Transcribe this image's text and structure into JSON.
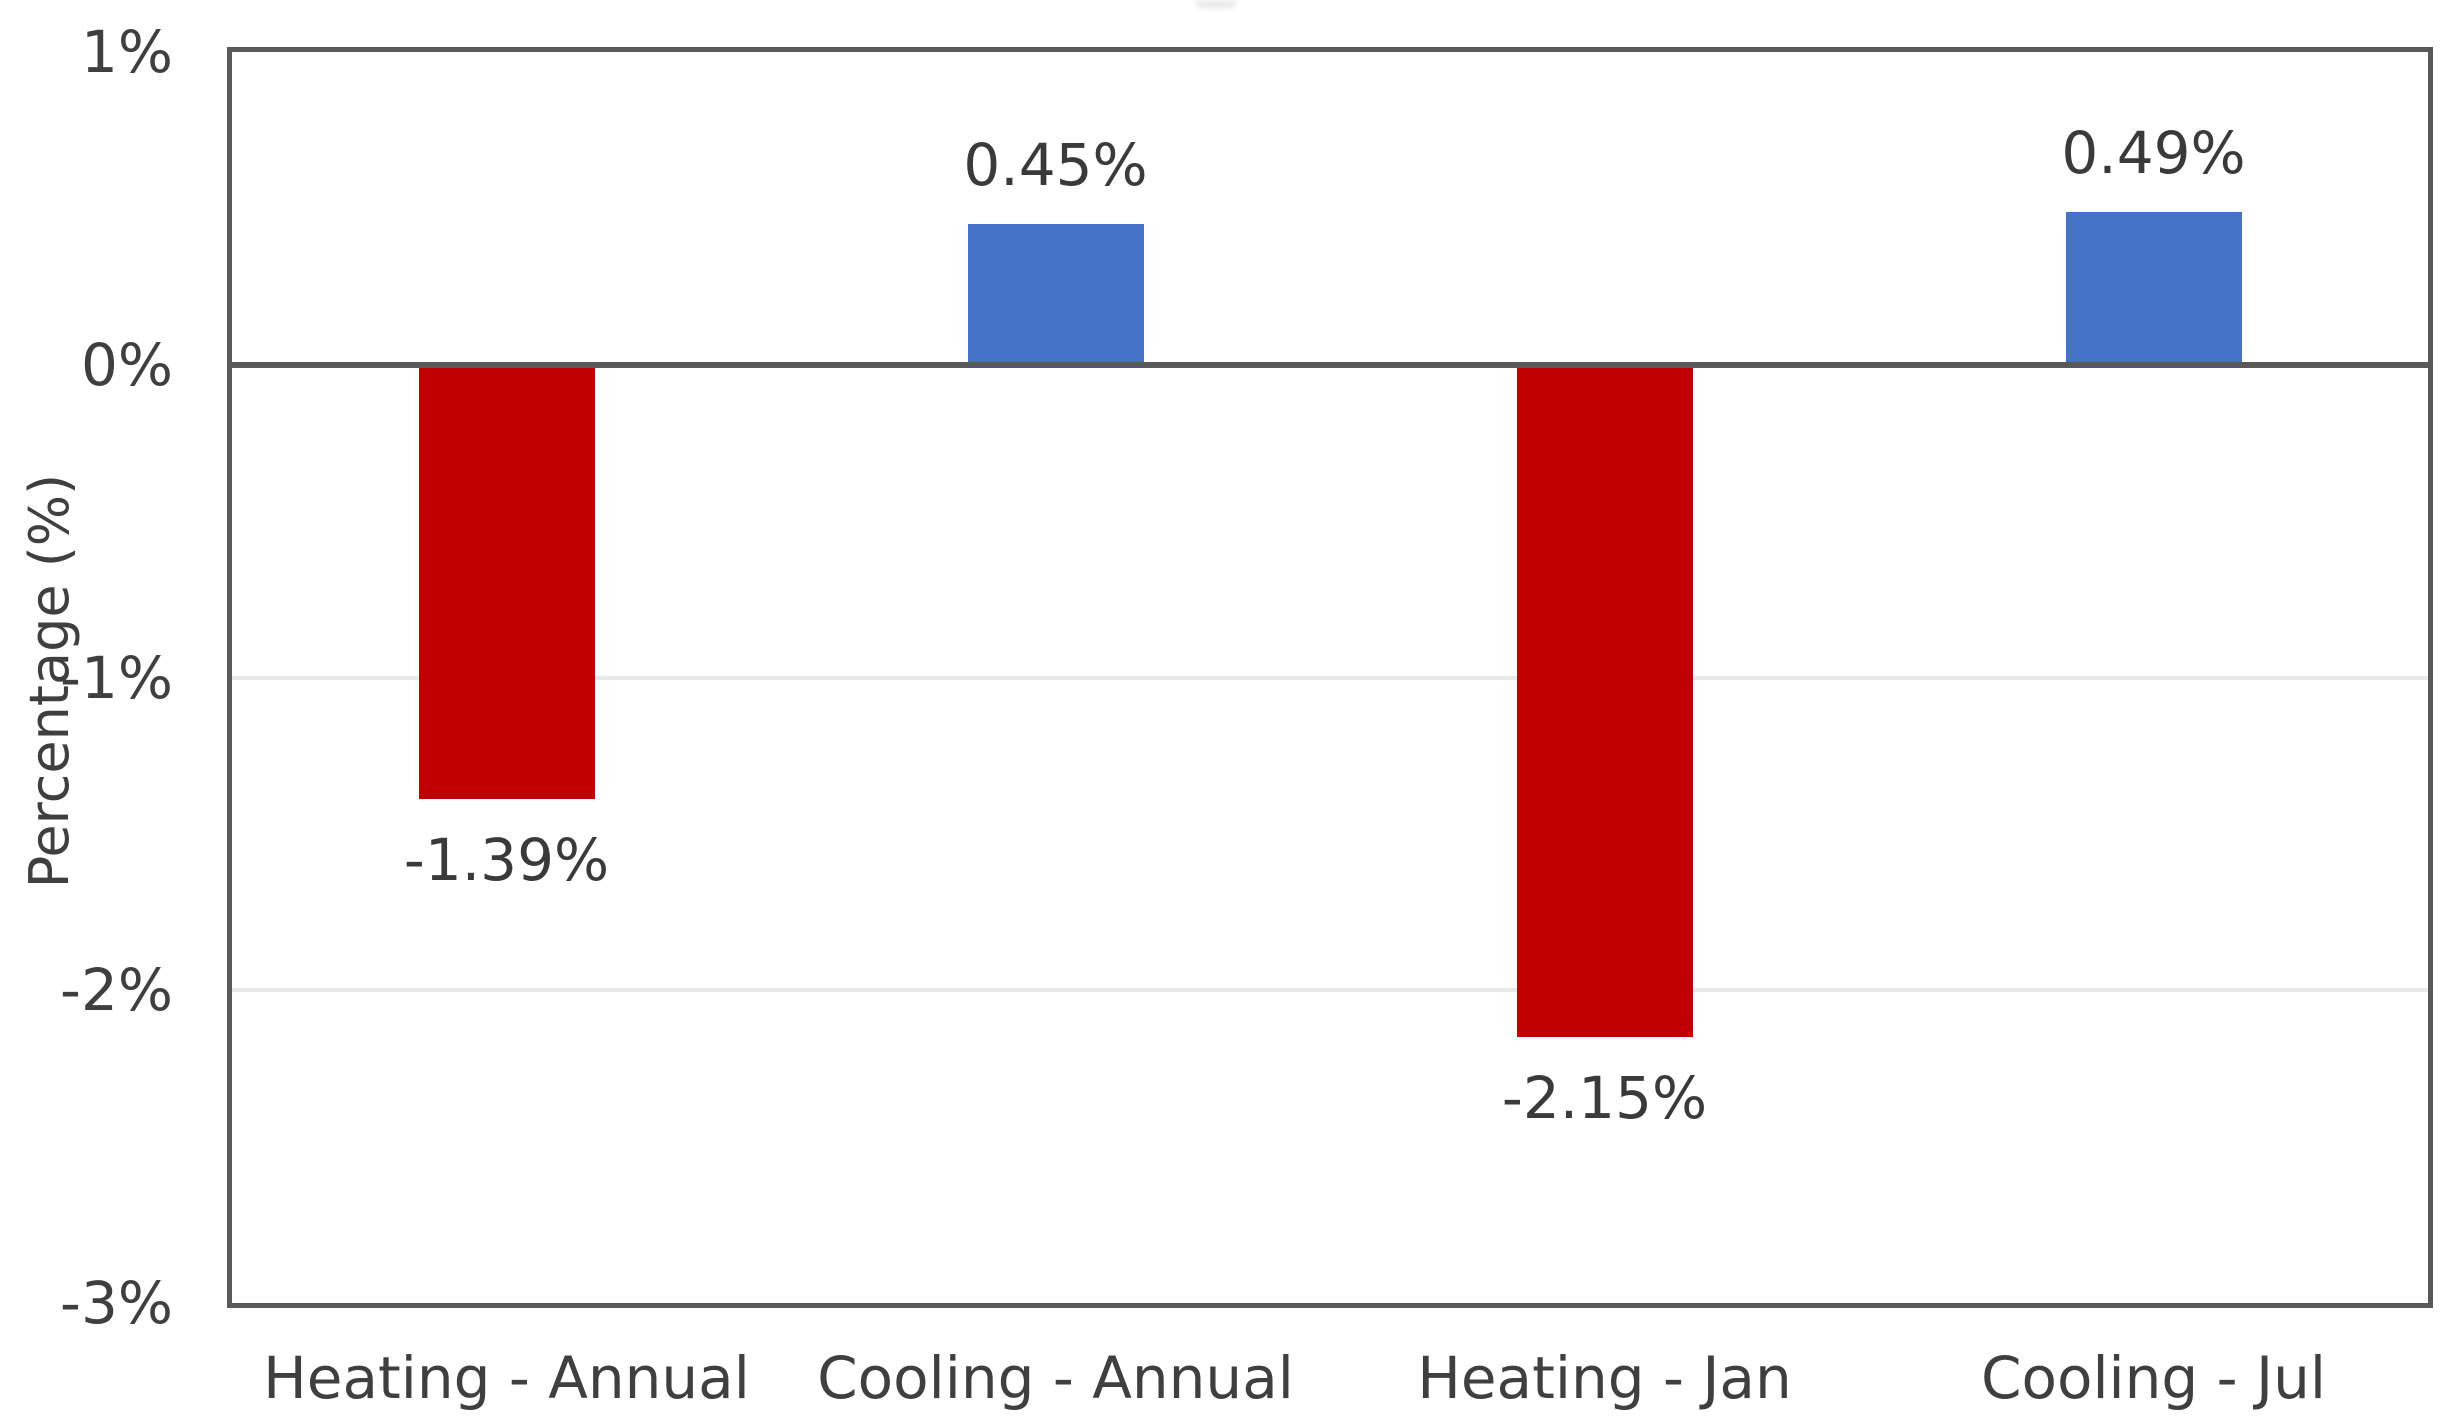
{
  "chart_data": {
    "type": "bar",
    "title": "",
    "categories": [
      "Heating - Annual",
      "Cooling - Annual",
      "Heating - Jan",
      "Cooling - Jul"
    ],
    "values": [
      -1.39,
      0.45,
      -2.15,
      0.49
    ],
    "data_labels": [
      "-1.39%",
      "0.45%",
      "-2.15%",
      "0.49%"
    ],
    "bar_colors": [
      "#c00000",
      "#4472c4",
      "#c00000",
      "#4472c4"
    ],
    "negative_color": "#c00000",
    "positive_color": "#4472c4",
    "xlabel": "",
    "ylabel": "Percentage (%)",
    "ylim": [
      -3,
      1
    ],
    "yticks": [
      1,
      0,
      -1,
      -2,
      -3
    ],
    "ytick_labels": [
      "1%",
      "0%",
      "-1%",
      "-2%",
      "-3%"
    ],
    "gridlines_at": [
      -1,
      -2
    ],
    "grid": "horizontal-light",
    "legend": "none",
    "plot_border_color": "#595959",
    "zero_line_color": "#595959",
    "gridline_color": "#e8e8e8",
    "text_color": "#3f3f3f",
    "background_color": "#ffffff"
  }
}
